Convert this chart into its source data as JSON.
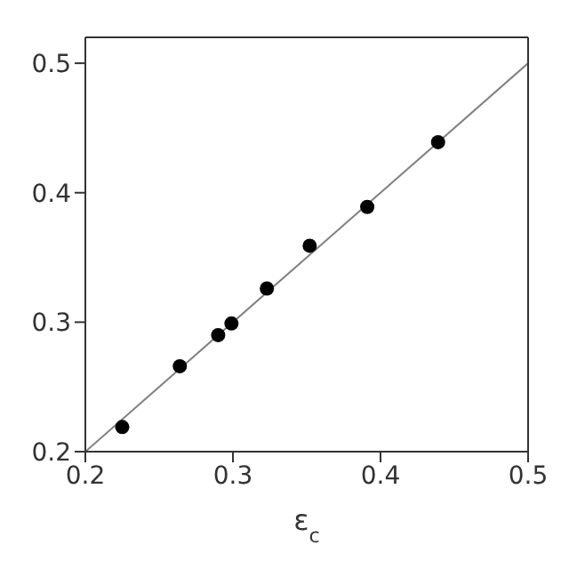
{
  "chart_data": {
    "type": "scatter",
    "xlabel": "ε$_{c}$",
    "xlim": [
      0.2,
      0.5
    ],
    "ylim": [
      0.2,
      0.52
    ],
    "xticks": [
      0.2,
      0.3,
      0.4,
      0.5
    ],
    "yticks": [
      0.2,
      0.3,
      0.4,
      0.5
    ],
    "legend": false,
    "marker": "circle",
    "series": [
      {
        "color": "#000000",
        "x": [
          0.225,
          0.264,
          0.29,
          0.299,
          0.323,
          0.352,
          0.391,
          0.439
        ],
        "values": [
          0.219,
          0.266,
          0.29,
          0.299,
          0.326,
          0.359,
          0.389,
          0.439
        ]
      },
      {
        "type": "line",
        "color": "#808080",
        "marker": "none",
        "x": [
          0.2,
          0.5
        ],
        "values": [
          0.2,
          0.5
        ]
      }
    ]
  }
}
